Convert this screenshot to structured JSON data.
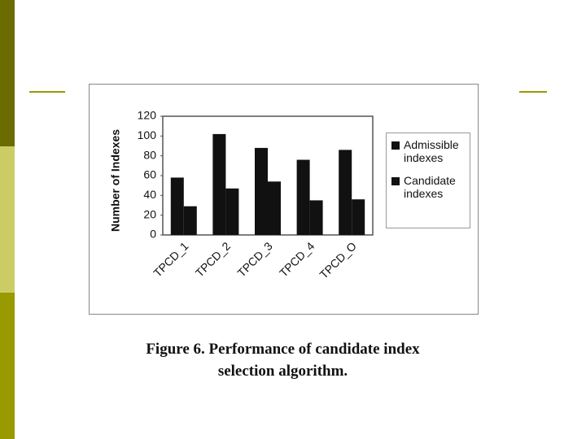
{
  "chart_data": {
    "type": "bar",
    "ylabel": "Number of Indexes",
    "categories": [
      "TPCD_1",
      "TPCD_2",
      "TPCD_3",
      "TPCD_4",
      "TPCD_O"
    ],
    "series": [
      {
        "name": "Admissible indexes",
        "color": "#111111",
        "values": [
          58,
          102,
          88,
          76,
          86
        ]
      },
      {
        "name": "Candidate indexes",
        "color": "#111111",
        "values": [
          29,
          47,
          54,
          35,
          36
        ]
      }
    ],
    "ylim": [
      0,
      120
    ],
    "yticks": [
      0,
      20,
      40,
      60,
      80,
      100,
      120
    ],
    "grid": false,
    "legend": "right",
    "caption": [
      "Figure 6. Performance of candidate index",
      "selection algorithm."
    ]
  }
}
